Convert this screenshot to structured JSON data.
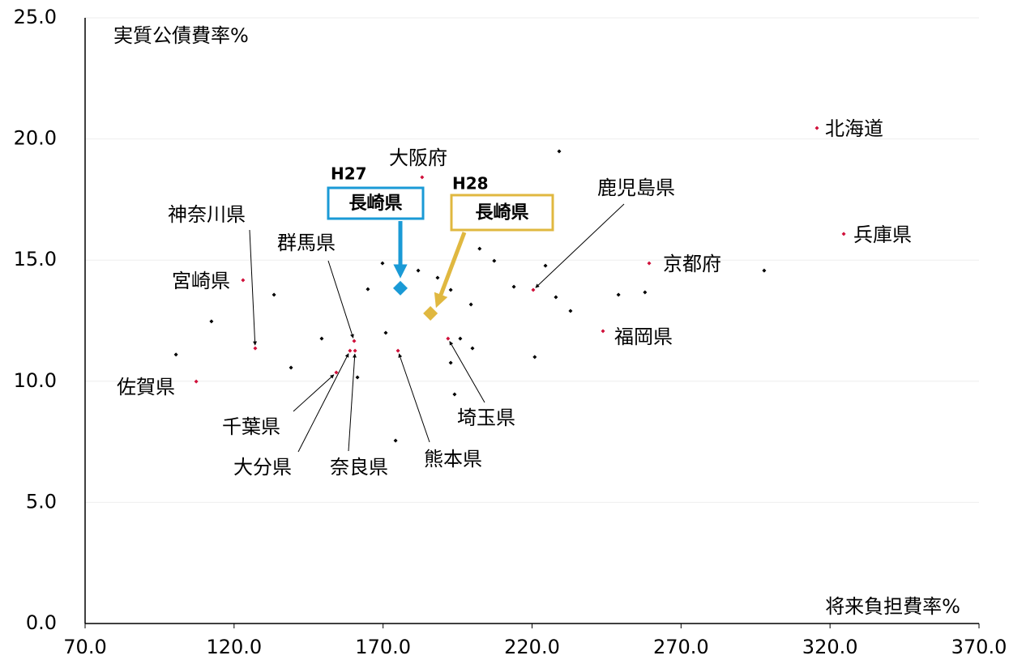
{
  "chart_data": {
    "type": "scatter",
    "xlabel": "将来負担費率%",
    "ylabel": "実質公債費率%",
    "xlim": [
      70,
      370
    ],
    "ylim": [
      0,
      25
    ],
    "xticks": [
      {
        "value": 70,
        "label": "70.0"
      },
      {
        "value": 120,
        "label": "120.0"
      },
      {
        "value": 170,
        "label": "170.0"
      },
      {
        "value": 220,
        "label": "220.0"
      },
      {
        "value": 270,
        "label": "270.0"
      },
      {
        "value": 320,
        "label": "320.0"
      },
      {
        "value": 370,
        "label": "370.0"
      }
    ],
    "yticks": [
      {
        "value": 0,
        "label": "0.0"
      },
      {
        "value": 5,
        "label": "5.0"
      },
      {
        "value": 10,
        "label": "10.0"
      },
      {
        "value": 15,
        "label": "15.0"
      },
      {
        "value": 20,
        "label": "20.0"
      },
      {
        "value": 25,
        "label": "25.0"
      }
    ],
    "grid": true,
    "series": [
      {
        "color": "#000000",
        "x": [
          229.1,
          100.5,
          112.4,
          133.4,
          139.1,
          149.4,
          161.4,
          164.9,
          169.8,
          170.9,
          174.2,
          181.8,
          188.3,
          192.7,
          192.7,
          194.0,
          195.9,
          199.5,
          200.0,
          202.4,
          207.3,
          213.9,
          220.9,
          224.5,
          228.0,
          232.9,
          249.0,
          257.9,
          297.9
        ],
        "values": [
          19.49,
          11.1,
          12.47,
          13.57,
          10.56,
          11.76,
          10.16,
          13.8,
          14.87,
          12.0,
          7.55,
          14.57,
          14.27,
          13.77,
          10.76,
          9.46,
          11.76,
          13.17,
          11.36,
          15.47,
          14.97,
          13.9,
          11.0,
          14.77,
          13.47,
          12.9,
          13.57,
          13.67,
          14.57
        ]
      },
      {
        "color": "#d0103a",
        "x": [
          315.6,
          324.6,
          259.3,
          243.8,
          220.4,
          183.1,
          123.0,
          127.1,
          107.3,
          154.3,
          158.9,
          160.6,
          160.3,
          175.0,
          191.8
        ],
        "values": [
          20.45,
          16.08,
          14.87,
          12.07,
          13.77,
          18.42,
          14.17,
          11.36,
          9.99,
          10.36,
          11.26,
          11.26,
          11.66,
          11.26,
          11.76
        ],
        "labels": [
          "北海道",
          "兵庫県",
          "京都府",
          "福岡県",
          "鹿児島県",
          "大阪府",
          "宮崎県",
          "神奈川県",
          "佐賀県",
          "千葉県",
          "大分県",
          "奈良県",
          "群馬県",
          "熊本県",
          "埼玉県"
        ]
      },
      {
        "tag": "H27",
        "color": "#1a9ad6",
        "x": [
          175.8
        ],
        "values": [
          13.84
        ],
        "labels": [
          "長崎県"
        ]
      },
      {
        "tag": "H28",
        "color": "#e0b840",
        "x": [
          185.9
        ],
        "values": [
          12.8
        ],
        "labels": [
          "長崎県"
        ]
      }
    ]
  }
}
